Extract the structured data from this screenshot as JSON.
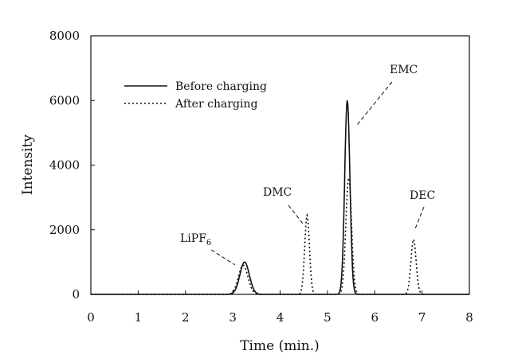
{
  "chart_data": {
    "type": "line",
    "xlabel": "Time (min.)",
    "ylabel": "Intensity",
    "xlim": [
      0,
      8
    ],
    "ylim": [
      0,
      8000
    ],
    "x_ticks": [
      "0",
      "1",
      "2",
      "3",
      "4",
      "5",
      "6",
      "7",
      "8"
    ],
    "y_ticks": [
      "0",
      "2000",
      "4000",
      "6000",
      "8000"
    ],
    "grid": false,
    "legend_position": "upper-left",
    "series": [
      {
        "name": "Before charging",
        "line_style": "solid",
        "color": "#111111",
        "peaks": [
          {
            "x": 3.25,
            "height": 1000,
            "width": 0.1
          },
          {
            "x": 5.42,
            "height": 6000,
            "width": 0.055
          }
        ]
      },
      {
        "name": "After charging",
        "line_style": "dotted",
        "color": "#111111",
        "peaks": [
          {
            "x": 3.22,
            "height": 900,
            "width": 0.1
          },
          {
            "x": 4.57,
            "height": 2450,
            "width": 0.05
          },
          {
            "x": 5.45,
            "height": 3600,
            "width": 0.06
          },
          {
            "x": 6.82,
            "height": 1700,
            "width": 0.055
          }
        ]
      }
    ],
    "annotations": [
      {
        "label": "LiPF",
        "subscript": "6",
        "x": 3.2,
        "y": 1000
      },
      {
        "label": "DMC",
        "x": 4.5,
        "y": 2200
      },
      {
        "label": "EMC",
        "x": 5.6,
        "y": 5200
      },
      {
        "label": "DEC",
        "x": 6.85,
        "y": 1800
      }
    ]
  }
}
